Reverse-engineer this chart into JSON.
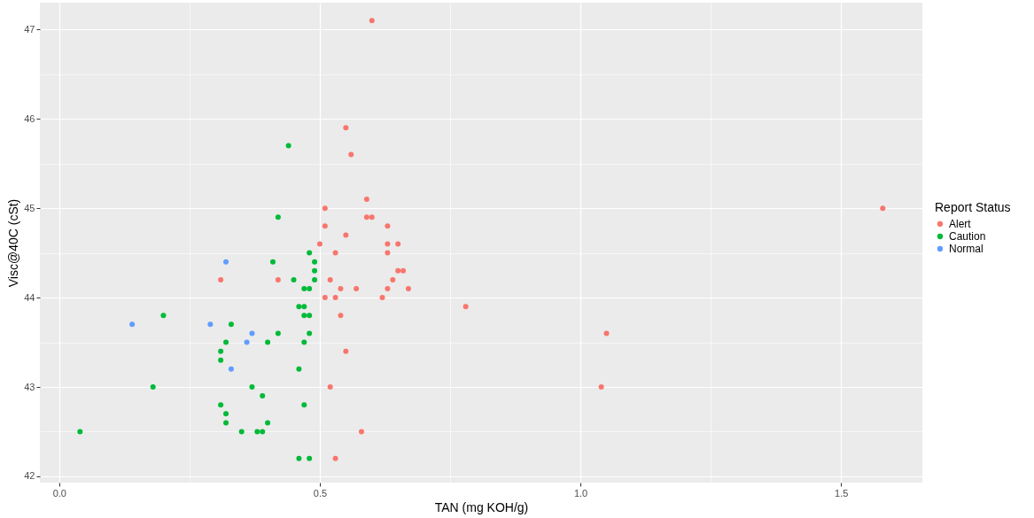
{
  "chart_data": {
    "type": "scatter",
    "xlabel": "TAN (mg KOH/g)",
    "ylabel": "Visc@40C (cSt)",
    "legend_title": "Report Status",
    "legend": "right",
    "grid": true,
    "marker": "circle",
    "xlim": [
      -0.037,
      1.656
    ],
    "ylim": [
      41.93,
      47.3
    ],
    "xticks": [
      {
        "value": 0,
        "label": "0.0"
      },
      {
        "value": 0.25,
        "label": null
      },
      {
        "value": 0.5,
        "label": "0.5"
      },
      {
        "value": 0.75,
        "label": null
      },
      {
        "value": 1,
        "label": "1.0"
      },
      {
        "value": 1.25,
        "label": null
      },
      {
        "value": 1.5,
        "label": "1.5"
      }
    ],
    "yticks": [
      42,
      {
        "value": 42.5,
        "label": null
      },
      43,
      {
        "value": 43.5,
        "label": null
      },
      44,
      {
        "value": 44.5,
        "label": null
      },
      45,
      {
        "value": 45.5,
        "label": null
      },
      46,
      {
        "value": 46.5,
        "label": null
      },
      47
    ],
    "series": [
      {
        "name": "Alert",
        "color": "#f8766d",
        "x": [
          0.6,
          0.55,
          0.56,
          0.59,
          0.51,
          0.59,
          0.6,
          0.51,
          0.63,
          0.55,
          0.5,
          0.63,
          0.65,
          0.53,
          0.63,
          0.65,
          0.66,
          0.64,
          0.31,
          0.42,
          0.52,
          0.54,
          0.57,
          0.63,
          0.67,
          0.51,
          0.53,
          0.62,
          0.78,
          0.54,
          0.55,
          1.05,
          0.52,
          1.04,
          0.58,
          0.53,
          1.58
        ],
        "values": [
          47.1,
          45.9,
          45.6,
          45.1,
          45.0,
          44.9,
          44.9,
          44.8,
          44.8,
          44.7,
          44.6,
          44.6,
          44.6,
          44.5,
          44.5,
          44.3,
          44.3,
          44.2,
          44.2,
          44.2,
          44.2,
          44.1,
          44.1,
          44.1,
          44.1,
          44.0,
          44.0,
          44.0,
          43.9,
          43.8,
          43.4,
          43.6,
          43.0,
          43.0,
          42.5,
          42.2,
          45.0
        ]
      },
      {
        "name": "Caution",
        "color": "#00ba38",
        "x": [
          0.44,
          0.42,
          0.48,
          0.41,
          0.49,
          0.49,
          0.45,
          0.49,
          0.47,
          0.48,
          0.46,
          0.47,
          0.47,
          0.48,
          0.2,
          0.33,
          0.42,
          0.48,
          0.32,
          0.4,
          0.47,
          0.31,
          0.31,
          0.46,
          0.18,
          0.37,
          0.39,
          0.31,
          0.47,
          0.32,
          0.32,
          0.4,
          0.04,
          0.35,
          0.38,
          0.39,
          0.46,
          0.48
        ],
        "values": [
          45.7,
          44.9,
          44.5,
          44.4,
          44.4,
          44.3,
          44.2,
          44.2,
          44.1,
          44.1,
          43.9,
          43.9,
          43.8,
          43.8,
          43.8,
          43.7,
          43.6,
          43.6,
          43.5,
          43.5,
          43.5,
          43.4,
          43.3,
          43.2,
          43.0,
          43.0,
          42.9,
          42.8,
          42.8,
          42.7,
          42.6,
          42.6,
          42.5,
          42.5,
          42.5,
          42.5,
          42.2,
          42.2
        ]
      },
      {
        "name": "Normal",
        "color": "#619cff",
        "x": [
          0.14,
          0.29,
          0.32,
          0.37,
          0.36,
          0.33
        ],
        "values": [
          43.7,
          43.7,
          44.4,
          43.6,
          43.5,
          43.2
        ]
      }
    ]
  }
}
